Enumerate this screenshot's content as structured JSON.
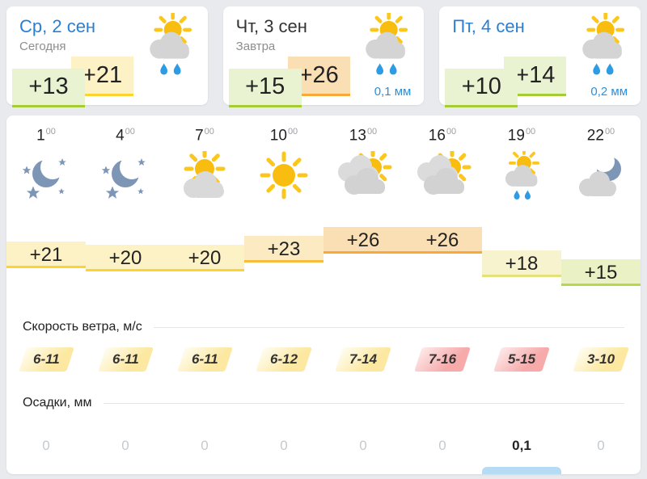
{
  "colors": {
    "page_bg": "#e8eaee",
    "card_bg": "#ffffff",
    "accent_blue": "#2a7fd4",
    "precip_blue": "#2a90dd",
    "precip_bar_blue": "#b5dcf4",
    "badge_green_bg": "#e9f3d2",
    "badge_green_border": "#a5cc35",
    "badge_yellow_bg": "#fdf1c6",
    "badge_yellow_border": "#fdd32f",
    "badge_orange_bg": "#fbdfb4",
    "badge_orange_border": "#f8a93a",
    "band_pale_yellow_bg": "#f7f3cf",
    "band_pale_yellow_border": "#e3e17c",
    "band_pale_green_bg": "#eaf2c5",
    "band_pale_green_border": "#b7d84c",
    "wind_pink": "#f6aaaa",
    "wind_yellow": "#fce8a0",
    "sun_yellow": "#f8bd0f",
    "cloud_gray": "#d4d4d4",
    "moon_slate": "#7e96b6",
    "rain_drop_blue": "#2d9ce5"
  },
  "day_cards": [
    {
      "title": "Ср, 2 сен",
      "title_tone": "blue",
      "subtitle": "Сегодня",
      "temp_night": "+13",
      "temp_day": "+21",
      "night_variant": "green",
      "day_variant": "yellow",
      "icon": "sun-cloud-rain",
      "icon_ref": "#sym-day-rain",
      "precip": ""
    },
    {
      "title": "Чт, 3 сен",
      "title_tone": "dark",
      "subtitle": "Завтра",
      "temp_night": "+15",
      "temp_day": "+26",
      "night_variant": "green",
      "day_variant": "orange",
      "icon": "sun-cloud-rain",
      "icon_ref": "#sym-day-rain",
      "precip": "0,1 мм"
    },
    {
      "title": "Пт, 4 сен",
      "title_tone": "blue",
      "subtitle": "",
      "temp_night": "+10",
      "temp_day": "+14",
      "night_variant": "green",
      "day_variant": "green",
      "icon": "sun-cloud-rain",
      "icon_ref": "#sym-day-rain",
      "precip": "0,2 мм"
    }
  ],
  "hourly": {
    "time_sup": "00",
    "wind_label": "Скорость ветра, м/с",
    "precip_label": "Осадки, мм",
    "hours": [
      {
        "time": "1",
        "icon": "clear-night",
        "icon_ref": "#sym-clear-night",
        "temp": "+21",
        "temp_value": 21,
        "band": "yellow",
        "wind": "6-11",
        "wind_variant": "yellow",
        "precip": "0",
        "precip_active": false
      },
      {
        "time": "4",
        "icon": "clear-night",
        "icon_ref": "#sym-clear-night",
        "temp": "+20",
        "temp_value": 20,
        "band": "yellow",
        "wind": "6-11",
        "wind_variant": "yellow",
        "precip": "0",
        "precip_active": false
      },
      {
        "time": "7",
        "icon": "sun-behind-cloud",
        "icon_ref": "#sym-sun-cloud",
        "temp": "+20",
        "temp_value": 20,
        "band": "yellow",
        "wind": "6-11",
        "wind_variant": "yellow",
        "precip": "0",
        "precip_active": false
      },
      {
        "time": "10",
        "icon": "sunny",
        "icon_ref": "#sym-sun",
        "temp": "+23",
        "temp_value": 23,
        "band": "amber",
        "wind": "6-12",
        "wind_variant": "yellow",
        "precip": "0",
        "precip_active": false
      },
      {
        "time": "13",
        "icon": "mostly-cloudy",
        "icon_ref": "#sym-clouds-sun",
        "temp": "+26",
        "temp_value": 26,
        "band": "orange",
        "wind": "7-14",
        "wind_variant": "yellow",
        "precip": "0",
        "precip_active": false
      },
      {
        "time": "16",
        "icon": "mostly-cloudy",
        "icon_ref": "#sym-clouds-sun",
        "temp": "+26",
        "temp_value": 26,
        "band": "orange",
        "wind": "7-16",
        "wind_variant": "pink",
        "precip": "0",
        "precip_active": false
      },
      {
        "time": "19",
        "icon": "sun-cloud-rain",
        "icon_ref": "#sym-day-rain",
        "temp": "+18",
        "temp_value": 18,
        "band": "pale-yellow",
        "wind": "5-15",
        "wind_variant": "pink",
        "precip": "0,1",
        "precip_active": true
      },
      {
        "time": "22",
        "icon": "cloud-moon",
        "icon_ref": "#sym-cloud-moon",
        "temp": "+15",
        "temp_value": 15,
        "band": "pale-green",
        "wind": "3-10",
        "wind_variant": "yellow",
        "precip": "0",
        "precip_active": false
      }
    ]
  }
}
